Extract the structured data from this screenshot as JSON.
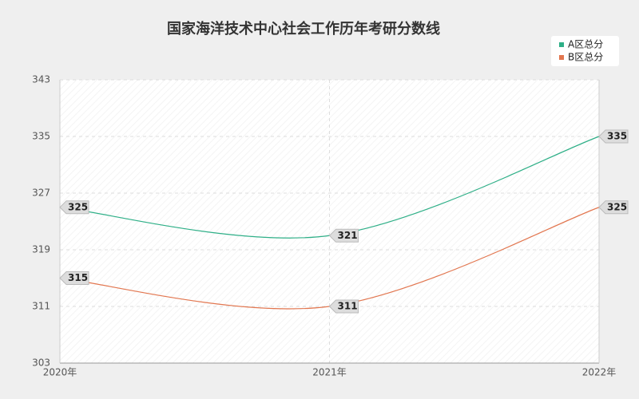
{
  "chart_data": {
    "type": "line",
    "title": "国家海洋技术中心社会工作历年考研分数线",
    "categories": [
      "2020年",
      "2021年",
      "2022年"
    ],
    "series": [
      {
        "name": "A区总分",
        "color": "#2eaf87",
        "values": [
          325,
          321,
          335
        ]
      },
      {
        "name": "B区总分",
        "color": "#e2764f",
        "values": [
          315,
          311,
          325
        ]
      }
    ],
    "ylim": [
      303,
      343
    ],
    "yticks": [
      303,
      311,
      319,
      327,
      335,
      343
    ],
    "grid": true,
    "legend": "top-right"
  }
}
